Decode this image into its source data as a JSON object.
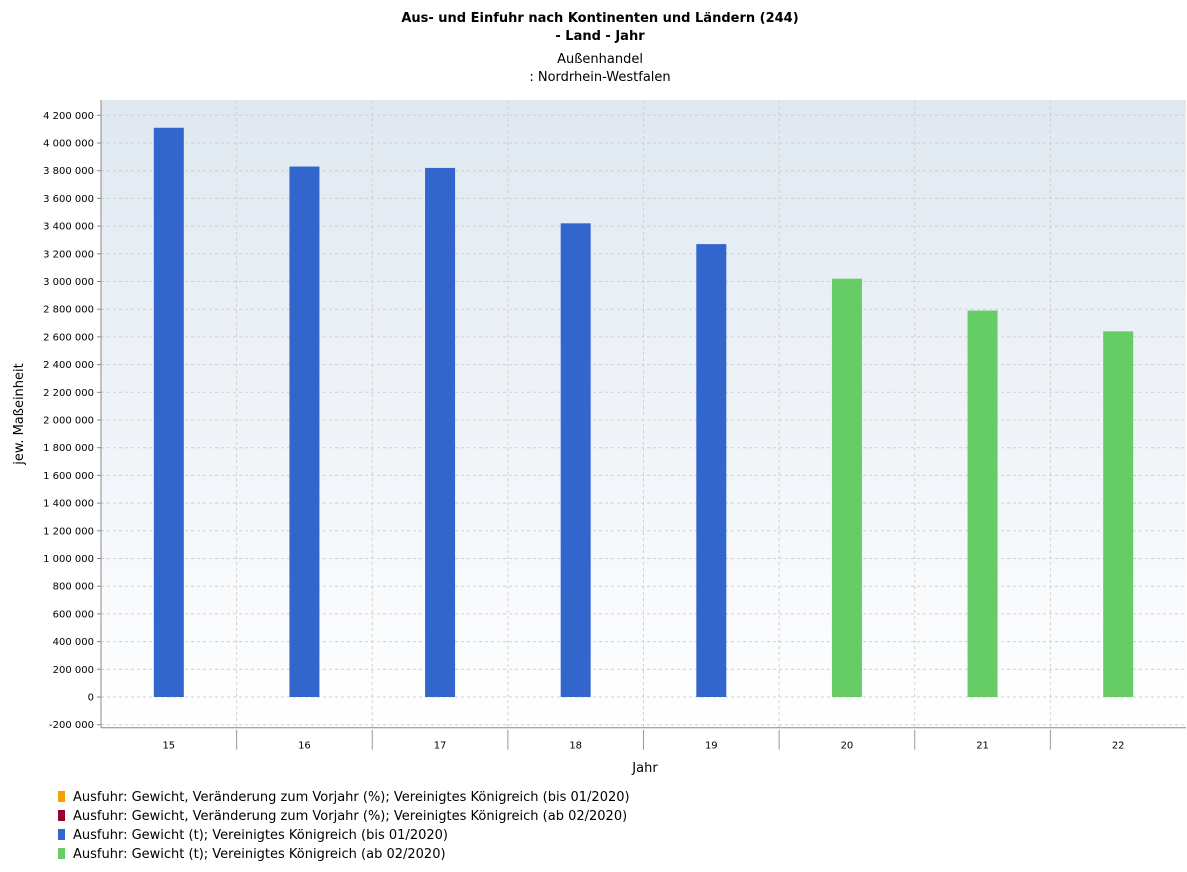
{
  "chart_data": {
    "type": "bar",
    "title": "Aus- und Einfuhr nach Kontinenten und Ländern (244)",
    "title_line2": "- Land - Jahr",
    "subtitle": "Außenhandel",
    "subtitle_line2": ": Nordrhein-Westfalen",
    "xlabel": "Jahr",
    "ylabel": "jew. Maßeinheit",
    "categories": [
      "15",
      "16",
      "17",
      "18",
      "19",
      "20",
      "21",
      "22"
    ],
    "ylim": [
      -200000,
      4200000
    ],
    "yticks": [
      -200000,
      0,
      200000,
      400000,
      600000,
      800000,
      1000000,
      1200000,
      1400000,
      1600000,
      1800000,
      2000000,
      2200000,
      2400000,
      2600000,
      2800000,
      3000000,
      3200000,
      3400000,
      3600000,
      3800000,
      4000000,
      4200000
    ],
    "grid": true,
    "legend_position": "bottom-left",
    "series": [
      {
        "name": "Ausfuhr: Gewicht, Veränderung zum Vorjahr (%); Vereinigtes Königreich (bis 01/2020)",
        "color": "#f5a000",
        "values": [
          null,
          null,
          null,
          null,
          null,
          null,
          null,
          null
        ]
      },
      {
        "name": "Ausfuhr: Gewicht, Veränderung zum Vorjahr (%); Vereinigtes Königreich (ab 02/2020)",
        "color": "#990033",
        "values": [
          null,
          null,
          null,
          null,
          null,
          null,
          null,
          null
        ]
      },
      {
        "name": "Ausfuhr: Gewicht (t); Vereinigtes Königreich (bis 01/2020)",
        "color": "#3366cc",
        "values": [
          4110000,
          3830000,
          3820000,
          3420000,
          3270000,
          null,
          null,
          null
        ]
      },
      {
        "name": "Ausfuhr: Gewicht (t); Vereinigtes Königreich (ab 02/2020)",
        "color": "#66cc66",
        "values": [
          null,
          null,
          null,
          null,
          null,
          3020000,
          2790000,
          2640000
        ]
      }
    ]
  }
}
